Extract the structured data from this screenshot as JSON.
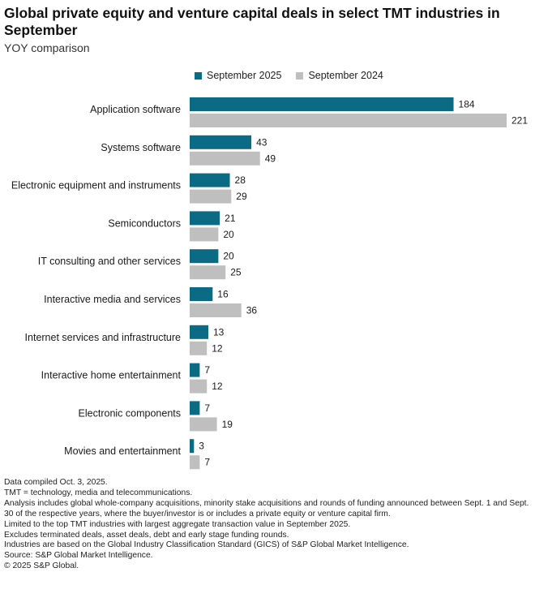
{
  "chart_data": {
    "type": "bar",
    "orientation": "horizontal",
    "title": "Global private equity and venture capital deals in select TMT industries in September",
    "subtitle": "YOY comparison",
    "categories": [
      "Application software",
      "Systems software",
      "Electronic equipment and instruments",
      "Semiconductors",
      "IT consulting and other services",
      "Interactive media and services",
      "Internet services and infrastructure",
      "Interactive home entertainment",
      "Electronic components",
      "Movies and entertainment"
    ],
    "series": [
      {
        "name": "September 2025",
        "color": "#0b6b84",
        "values": [
          184,
          43,
          28,
          21,
          20,
          16,
          13,
          7,
          7,
          3
        ]
      },
      {
        "name": "September 2024",
        "color": "#bfbfbf",
        "values": [
          221,
          49,
          29,
          20,
          25,
          36,
          12,
          12,
          19,
          7
        ]
      }
    ],
    "xlim": [
      0,
      221
    ],
    "legend_position": "top",
    "grid": false
  },
  "notes": [
    "Data compiled Oct. 3, 2025.",
    "TMT = technology, media and telecommunications.",
    "Analysis includes global whole-company acquisitions, minority stake acquisitions and rounds of funding announced between Sept. 1 and Sept. 30 of the respective years, where the buyer/investor is or includes a private equity or venture capital firm.",
    "Limited to the top TMT industries with largest aggregate transaction value in September 2025.",
    "Excludes terminated deals, asset deals, debt and early stage funding rounds.",
    "Industries are based on the Global Industry Classification Standard (GICS) of S&P Global Market Intelligence.",
    "Source: S&P Global Market Intelligence.",
    "© 2025 S&P Global."
  ]
}
